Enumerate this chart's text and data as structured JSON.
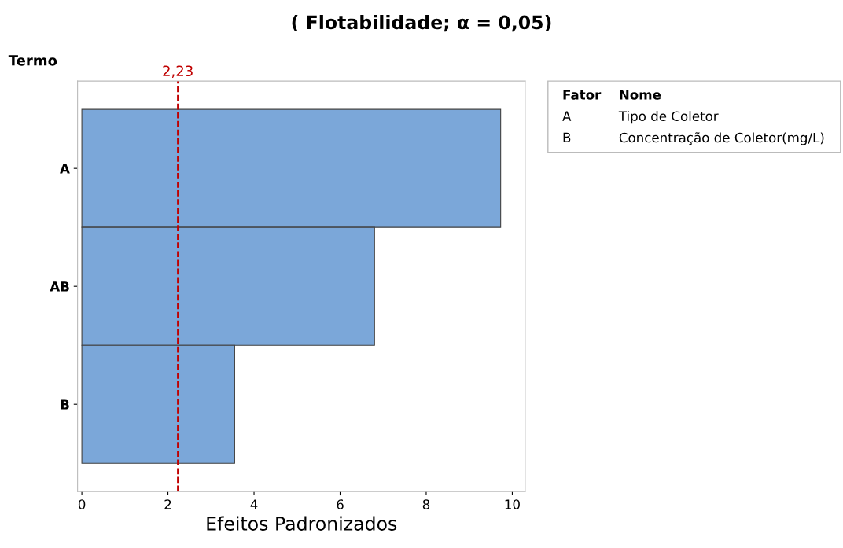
{
  "chart_data": {
    "type": "bar",
    "orientation": "horizontal",
    "title": "( Flotabilidade; α = 0,05)",
    "xlabel": "Efeitos Padronizados",
    "ylabel": "Termo",
    "categories": [
      "A",
      "AB",
      "B"
    ],
    "values": [
      9.73,
      6.8,
      3.55
    ],
    "color": "#7ba7d9",
    "xlim": [
      -0.1,
      10.3
    ],
    "xticks": [
      0,
      2,
      4,
      6,
      8,
      10
    ],
    "grid": false,
    "legend": false,
    "ref_lines": [
      {
        "axis": "x",
        "value": 2.23,
        "label": "2,23",
        "color": "#c00000",
        "line_style": "dashed"
      }
    ],
    "annotations": [
      "Fator",
      "Nome",
      "A",
      "Tipo de Coletor",
      "B",
      "Concentração de Coletor(mg/L)"
    ]
  }
}
